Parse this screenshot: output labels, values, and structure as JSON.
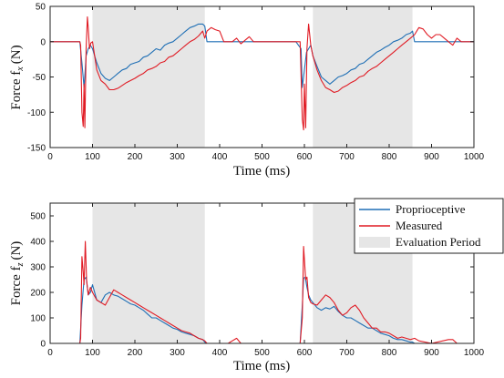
{
  "colors": {
    "proprioceptive": "#1f6fb5",
    "measured": "#e01b24",
    "evaluation": "#e6e6e6"
  },
  "chart_data": [
    {
      "type": "line",
      "xlabel": "Time (ms)",
      "ylabel": "Force f",
      "ylabel_sub": "x",
      "ylabel_unit": "(N)",
      "xlim": [
        0,
        1000
      ],
      "ylim": [
        -150,
        50
      ],
      "xticks": [
        0,
        100,
        200,
        300,
        400,
        500,
        600,
        700,
        800,
        900,
        1000
      ],
      "yticks": [
        -150,
        -100,
        -50,
        0,
        50
      ],
      "grid": false,
      "evaluation_periods": [
        [
          100,
          365
        ],
        [
          620,
          855
        ]
      ],
      "series": [
        {
          "name": "Proprioceptive",
          "x": [
            0,
            70,
            75,
            80,
            85,
            90,
            95,
            100,
            110,
            120,
            130,
            140,
            150,
            160,
            170,
            180,
            190,
            200,
            210,
            220,
            230,
            240,
            250,
            260,
            270,
            280,
            290,
            300,
            310,
            320,
            330,
            340,
            350,
            360,
            365,
            370,
            400,
            500,
            580,
            592,
            595,
            600,
            605,
            610,
            615,
            620,
            630,
            640,
            650,
            660,
            670,
            680,
            690,
            700,
            710,
            720,
            730,
            740,
            750,
            760,
            770,
            780,
            790,
            800,
            810,
            820,
            830,
            840,
            850,
            855,
            860,
            900,
            1000
          ],
          "y": [
            0,
            0,
            -30,
            -65,
            -20,
            -10,
            -5,
            -10,
            -30,
            -45,
            -52,
            -55,
            -50,
            -45,
            -40,
            -38,
            -32,
            -30,
            -28,
            -22,
            -20,
            -15,
            -10,
            -12,
            -5,
            -2,
            0,
            5,
            10,
            15,
            20,
            22,
            25,
            25,
            22,
            0,
            0,
            0,
            0,
            -10,
            -65,
            -40,
            -15,
            -10,
            -5,
            -20,
            -35,
            -50,
            -55,
            -60,
            -55,
            -50,
            -48,
            -45,
            -40,
            -38,
            -32,
            -30,
            -25,
            -20,
            -15,
            -12,
            -8,
            -5,
            0,
            2,
            5,
            10,
            12,
            15,
            0,
            0,
            0
          ]
        },
        {
          "name": "Measured",
          "x": [
            0,
            70,
            72,
            75,
            78,
            80,
            82,
            85,
            88,
            90,
            93,
            96,
            100,
            110,
            120,
            130,
            140,
            150,
            160,
            170,
            180,
            190,
            200,
            210,
            220,
            230,
            240,
            250,
            260,
            270,
            280,
            290,
            300,
            310,
            320,
            330,
            340,
            350,
            360,
            365,
            370,
            380,
            390,
            400,
            410,
            420,
            430,
            440,
            450,
            460,
            470,
            480,
            590,
            595,
            598,
            600,
            603,
            606,
            610,
            615,
            620,
            630,
            640,
            650,
            660,
            670,
            680,
            690,
            700,
            710,
            720,
            730,
            740,
            750,
            760,
            770,
            780,
            790,
            800,
            810,
            820,
            830,
            840,
            850,
            860,
            870,
            880,
            890,
            900,
            910,
            920,
            930,
            940,
            950,
            960,
            970,
            980,
            1000
          ],
          "y": [
            0,
            0,
            -5,
            -100,
            -120,
            -60,
            -122,
            -10,
            35,
            20,
            -10,
            -2,
            0,
            -40,
            -55,
            -60,
            -68,
            -68,
            -66,
            -62,
            -58,
            -55,
            -52,
            -48,
            -45,
            -40,
            -38,
            -35,
            -30,
            -28,
            -22,
            -20,
            -15,
            -10,
            -5,
            0,
            3,
            8,
            15,
            5,
            15,
            20,
            17,
            15,
            0,
            0,
            0,
            5,
            -3,
            2,
            7,
            0,
            0,
            -110,
            -125,
            -60,
            -122,
            -10,
            25,
            -5,
            -20,
            -40,
            -55,
            -65,
            -68,
            -72,
            -70,
            -65,
            -62,
            -58,
            -55,
            -50,
            -48,
            -42,
            -38,
            -35,
            -30,
            -25,
            -20,
            -15,
            -10,
            -5,
            0,
            5,
            10,
            20,
            18,
            10,
            5,
            10,
            10,
            5,
            0,
            -5,
            5,
            0,
            0,
            0
          ]
        }
      ]
    },
    {
      "type": "line",
      "xlabel": "Time (ms)",
      "ylabel": "Force f",
      "ylabel_sub": "z",
      "ylabel_unit": "(N)",
      "xlim": [
        0,
        1000
      ],
      "ylim": [
        0,
        550
      ],
      "xticks": [
        0,
        100,
        200,
        300,
        400,
        500,
        600,
        700,
        800,
        900,
        1000
      ],
      "yticks": [
        0,
        100,
        200,
        300,
        400,
        500
      ],
      "grid": false,
      "evaluation_periods": [
        [
          100,
          365
        ],
        [
          620,
          855
        ]
      ],
      "legend": {
        "position": "top-right",
        "entries": [
          "Proprioceptive",
          "Measured",
          "Evaluation Period"
        ]
      },
      "series": [
        {
          "name": "Proprioceptive",
          "x": [
            0,
            70,
            75,
            80,
            85,
            90,
            95,
            100,
            110,
            120,
            130,
            140,
            150,
            160,
            170,
            180,
            190,
            200,
            210,
            220,
            230,
            240,
            250,
            260,
            270,
            280,
            290,
            300,
            310,
            320,
            330,
            340,
            350,
            360,
            365,
            370,
            400,
            500,
            590,
            595,
            598,
            602,
            606,
            610,
            615,
            620,
            630,
            640,
            650,
            660,
            670,
            680,
            690,
            700,
            710,
            720,
            730,
            740,
            750,
            760,
            770,
            780,
            790,
            800,
            810,
            820,
            830,
            840,
            850,
            855,
            860,
            1000
          ],
          "y": [
            0,
            0,
            150,
            250,
            260,
            190,
            200,
            230,
            170,
            160,
            190,
            200,
            190,
            185,
            175,
            165,
            155,
            150,
            140,
            130,
            115,
            100,
            100,
            90,
            80,
            70,
            60,
            55,
            45,
            40,
            35,
            30,
            20,
            15,
            5,
            0,
            0,
            0,
            0,
            150,
            255,
            260,
            220,
            190,
            170,
            160,
            140,
            130,
            140,
            135,
            145,
            125,
            110,
            100,
            100,
            90,
            80,
            70,
            60,
            60,
            50,
            40,
            35,
            30,
            20,
            15,
            15,
            10,
            5,
            5,
            0,
            0
          ]
        },
        {
          "name": "Measured",
          "x": [
            0,
            70,
            72,
            75,
            78,
            80,
            83,
            86,
            90,
            95,
            100,
            110,
            120,
            130,
            140,
            150,
            160,
            170,
            180,
            190,
            200,
            210,
            220,
            230,
            240,
            250,
            260,
            270,
            280,
            290,
            300,
            310,
            320,
            330,
            340,
            350,
            360,
            365,
            370,
            400,
            420,
            440,
            450,
            500,
            580,
            590,
            595,
            598,
            600,
            603,
            606,
            610,
            615,
            620,
            630,
            640,
            650,
            660,
            670,
            680,
            690,
            700,
            710,
            720,
            730,
            740,
            750,
            760,
            770,
            780,
            790,
            800,
            810,
            820,
            830,
            840,
            850,
            860,
            870,
            900,
            940,
            950,
            960,
            1000
          ],
          "y": [
            0,
            0,
            20,
            340,
            280,
            230,
            400,
            250,
            190,
            220,
            200,
            170,
            160,
            150,
            180,
            210,
            200,
            190,
            180,
            170,
            160,
            150,
            140,
            130,
            120,
            110,
            100,
            90,
            80,
            70,
            60,
            50,
            45,
            40,
            30,
            20,
            15,
            10,
            0,
            0,
            0,
            20,
            0,
            0,
            0,
            0,
            100,
            380,
            330,
            250,
            260,
            180,
            160,
            155,
            150,
            170,
            190,
            180,
            160,
            130,
            110,
            120,
            140,
            150,
            130,
            100,
            80,
            60,
            60,
            45,
            45,
            40,
            30,
            20,
            25,
            20,
            15,
            20,
            10,
            0,
            15,
            15,
            0,
            0
          ]
        }
      ]
    }
  ]
}
